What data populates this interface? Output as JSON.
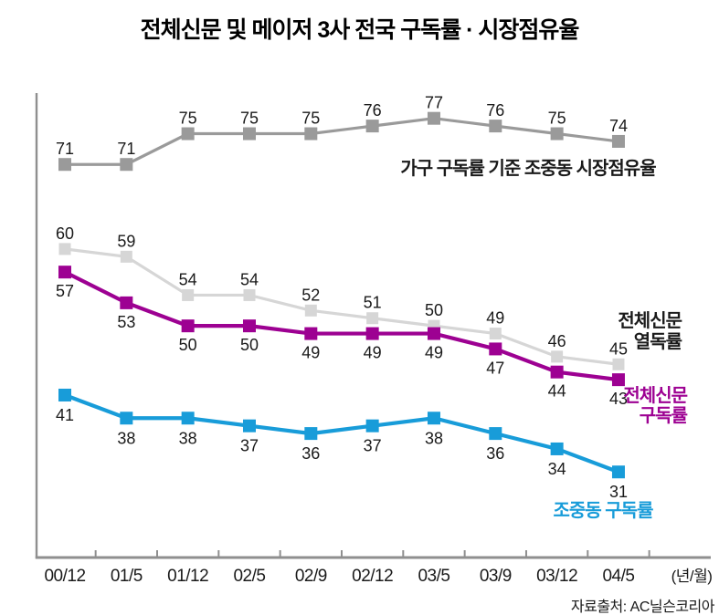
{
  "chart_data": {
    "type": "line",
    "title": "전체신문 및  메이저 3사 전국 구독률 · 시장점유율",
    "categories": [
      "00/12",
      "01/5",
      "01/12",
      "02/5",
      "02/9",
      "02/12",
      "03/5",
      "03/9",
      "03/12",
      "04/5"
    ],
    "x_unit_label": "(년/월)",
    "ylim": [
      20,
      80
    ],
    "grid": false,
    "legend_position": "inline-annotations",
    "source": "자료출처: AC닐슨코리아",
    "axis_color": "#8f8f8f",
    "label_color": "#1a1a1a",
    "series": [
      {
        "name": "가구 구독률 기준 조중동 시장점유율",
        "color": "#9a9a9a",
        "values": [
          71,
          71,
          75,
          75,
          75,
          76,
          77,
          76,
          75,
          74
        ],
        "value_label_side": "above",
        "annotation_lines": [
          "가구 구독률 기준 조중동 시장점유율"
        ],
        "annotation_color": "#1a1a1a"
      },
      {
        "name": "전체신문 열독률",
        "color": "#d6d6d6",
        "values": [
          60,
          59,
          54,
          54,
          52,
          51,
          50,
          49,
          46,
          45
        ],
        "value_label_side": "above",
        "annotation_lines": [
          "전체신문",
          "열독률"
        ],
        "annotation_color": "#1a1a1a"
      },
      {
        "name": "전체신문 구독률",
        "color": "#9d0192",
        "values": [
          57,
          53,
          50,
          50,
          49,
          49,
          49,
          47,
          44,
          43
        ],
        "value_label_side": "below",
        "annotation_lines": [
          "전체신문",
          "구독률"
        ],
        "annotation_color": "#9d0192"
      },
      {
        "name": "조중동 구독률",
        "color": "#189cd9",
        "values": [
          41,
          38,
          38,
          37,
          36,
          37,
          38,
          36,
          34,
          31
        ],
        "value_label_side": "below",
        "annotation_lines": [
          "조중동 구독률"
        ],
        "annotation_color": "#189cd9"
      }
    ]
  }
}
